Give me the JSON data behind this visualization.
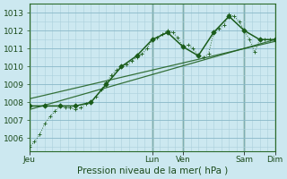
{
  "xlabel": "Pression niveau de la mer( hPa )",
  "bg_color": "#cce8f0",
  "grid_major_color": "#88b8c8",
  "grid_minor_color": "#aad0dc",
  "line_color": "#1a5c1a",
  "xlim": [
    0,
    96
  ],
  "ylim": [
    1005.3,
    1013.5
  ],
  "yticks": [
    1006,
    1007,
    1008,
    1009,
    1010,
    1011,
    1012,
    1013
  ],
  "xtick_positions": [
    0,
    48,
    60,
    84,
    96
  ],
  "xtick_labels": [
    "Jeu",
    "Lun",
    "Ven",
    "Sam",
    "Dim"
  ],
  "vline_positions": [
    0,
    48,
    60,
    84,
    96
  ],
  "series1_x": [
    0,
    2,
    4,
    6,
    8,
    10,
    12,
    14,
    16,
    18,
    20,
    22,
    24,
    26,
    28,
    30,
    32,
    34,
    36,
    38,
    40,
    42,
    44,
    46,
    48,
    50,
    52,
    54,
    56,
    58,
    60,
    62,
    64,
    66,
    68,
    70,
    72,
    74,
    76,
    78,
    80,
    82,
    84,
    86,
    88,
    90,
    92,
    94,
    96
  ],
  "series1_y": [
    1005.5,
    1005.8,
    1006.2,
    1006.8,
    1007.2,
    1007.5,
    1007.8,
    1007.7,
    1007.7,
    1007.6,
    1007.7,
    1007.9,
    1008.0,
    1008.3,
    1008.7,
    1009.1,
    1009.5,
    1009.8,
    1010.0,
    1010.1,
    1010.3,
    1010.5,
    1010.7,
    1011.0,
    1011.5,
    1011.6,
    1011.8,
    1012.0,
    1011.9,
    1011.6,
    1011.1,
    1011.2,
    1011.0,
    1010.6,
    1010.5,
    1010.7,
    1011.9,
    1012.1,
    1012.3,
    1012.9,
    1012.8,
    1012.5,
    1012.0,
    1011.5,
    1010.8,
    1011.5,
    1011.5,
    1011.5,
    1011.5
  ],
  "series2_x": [
    0,
    6,
    12,
    18,
    24,
    30,
    36,
    42,
    48,
    54,
    60,
    66,
    72,
    78,
    84,
    90,
    96
  ],
  "series2_y": [
    1007.8,
    1007.8,
    1007.8,
    1007.8,
    1008.0,
    1009.0,
    1010.0,
    1010.6,
    1011.5,
    1011.9,
    1011.1,
    1010.6,
    1011.9,
    1012.8,
    1012.0,
    1011.5,
    1011.5
  ],
  "trend1_x": [
    0,
    96
  ],
  "trend1_y": [
    1007.6,
    1011.5
  ],
  "trend2_x": [
    0,
    96
  ],
  "trend2_y": [
    1008.2,
    1011.4
  ]
}
